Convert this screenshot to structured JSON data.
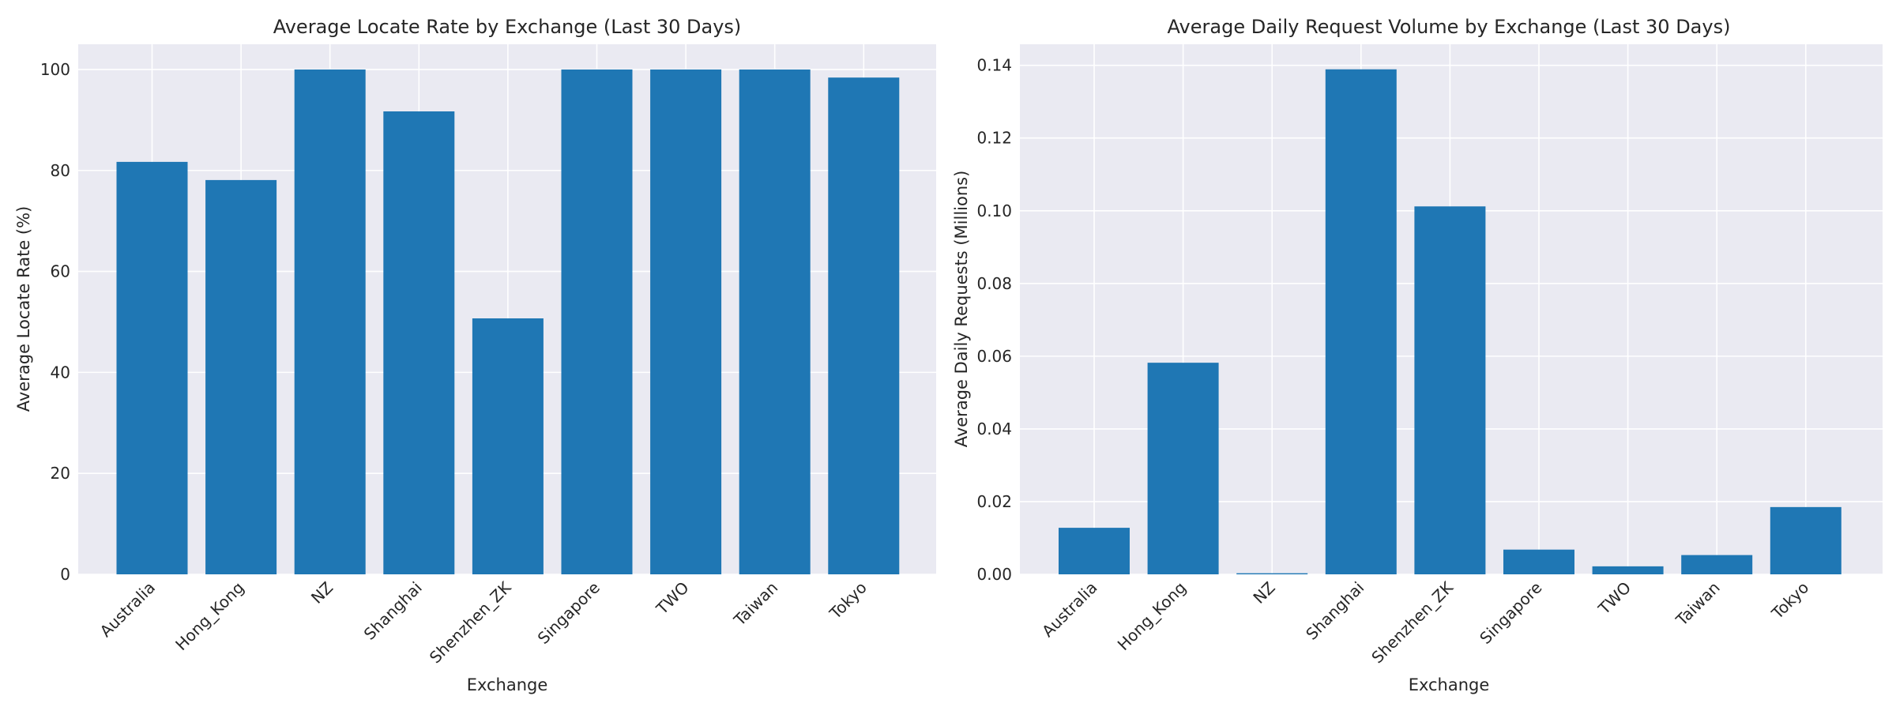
{
  "chart_data": [
    {
      "type": "bar",
      "title": "Average Locate Rate by Exchange (Last 30 Days)",
      "xlabel": "Exchange",
      "ylabel": "Average Locate Rate (%)",
      "categories": [
        "Australia",
        "Hong_Kong",
        "NZ",
        "Shanghai",
        "Shenzhen_ZK",
        "Singapore",
        "TWO",
        "Taiwan",
        "Tokyo"
      ],
      "values": [
        81.7,
        78.1,
        100.0,
        91.7,
        50.7,
        100.0,
        100.0,
        100.0,
        98.4
      ],
      "ylim": [
        0,
        105
      ],
      "yticks": [
        0,
        20,
        40,
        60,
        80,
        100
      ],
      "ytick_labels": [
        "0",
        "20",
        "40",
        "60",
        "80",
        "100"
      ],
      "grid": true,
      "bar_color": "#1f77b4",
      "background_color": "#eaeaf2"
    },
    {
      "type": "bar",
      "title": "Average Daily Request Volume by Exchange (Last 30 Days)",
      "xlabel": "Exchange",
      "ylabel": "Average Daily Requests (Millions)",
      "categories": [
        "Australia",
        "Hong_Kong",
        "NZ",
        "Shanghai",
        "Shenzhen_ZK",
        "Singapore",
        "TWO",
        "Taiwan",
        "Tokyo"
      ],
      "values": [
        0.0128,
        0.0582,
        0.0003,
        0.1389,
        0.1012,
        0.0068,
        0.0022,
        0.0053,
        0.0185
      ],
      "ylim": [
        0,
        0.1458
      ],
      "yticks": [
        0,
        0.02,
        0.04,
        0.06,
        0.08,
        0.1,
        0.12,
        0.14
      ],
      "ytick_labels": [
        "0.00",
        "0.02",
        "0.04",
        "0.06",
        "0.08",
        "0.10",
        "0.12",
        "0.14"
      ],
      "grid": true,
      "bar_color": "#1f77b4",
      "background_color": "#eaeaf2"
    }
  ]
}
